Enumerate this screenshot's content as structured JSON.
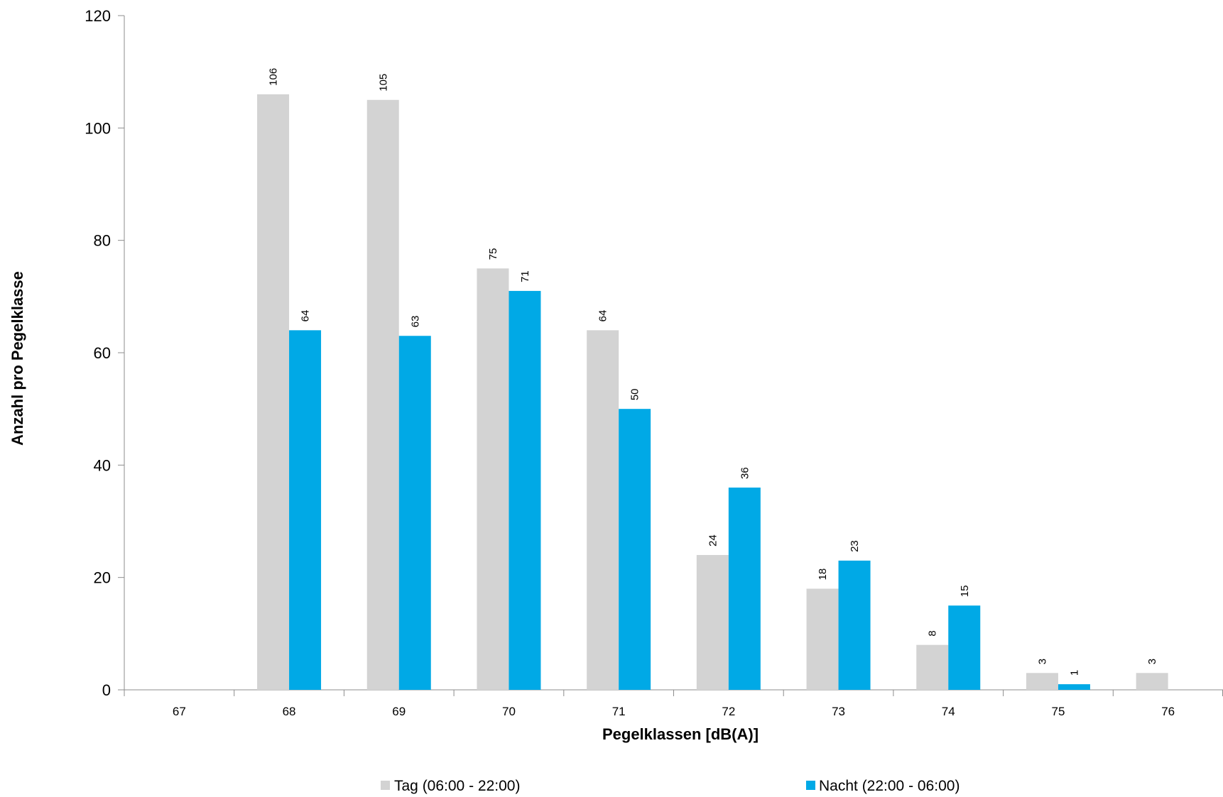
{
  "chart_data": {
    "type": "bar",
    "title": "",
    "xlabel": "Pegelklassen [dB(A)]",
    "ylabel": "Anzahl pro Pegelklasse",
    "categories": [
      "67",
      "68",
      "69",
      "70",
      "71",
      "72",
      "73",
      "74",
      "75",
      "76"
    ],
    "ylim": [
      0,
      120
    ],
    "yticks": [
      0,
      20,
      40,
      60,
      80,
      100,
      120
    ],
    "grid": false,
    "legend_position": "bottom",
    "series": [
      {
        "name": "Tag (06:00 - 22:00)",
        "color": "#d3d3d3",
        "values": [
          null,
          106,
          105,
          75,
          64,
          24,
          18,
          8,
          3,
          3
        ]
      },
      {
        "name": "Nacht (22:00 - 06:00)",
        "color": "#00a9e6",
        "values": [
          null,
          64,
          63,
          71,
          50,
          36,
          23,
          15,
          1,
          null
        ]
      }
    ]
  }
}
